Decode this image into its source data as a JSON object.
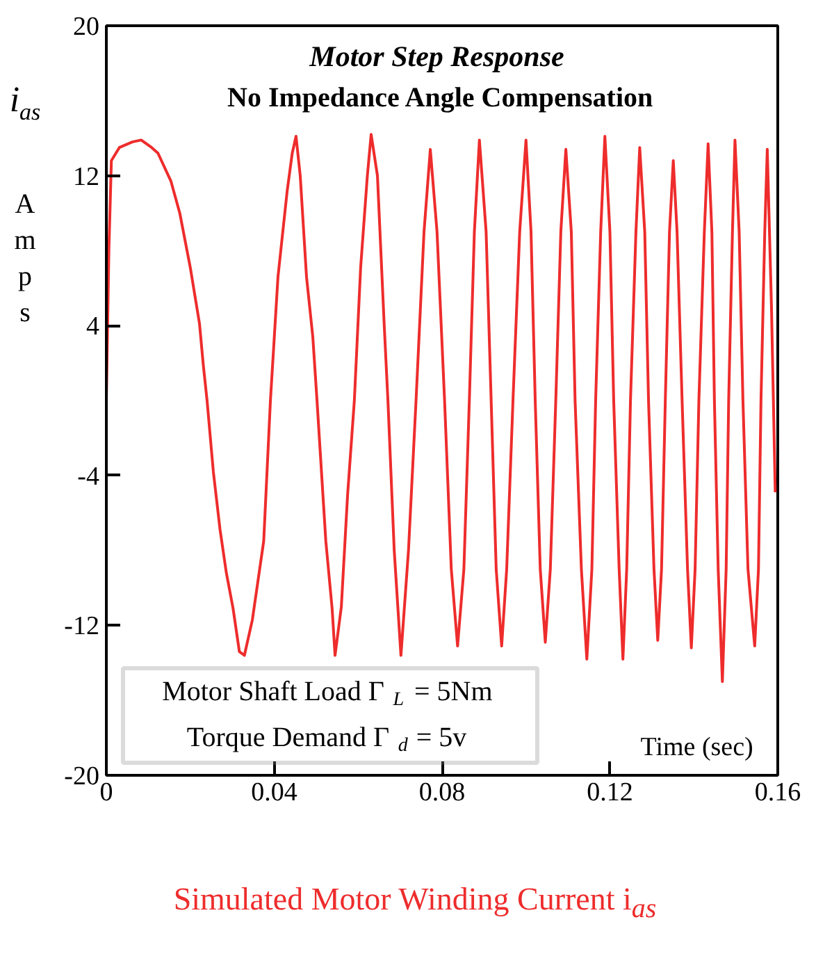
{
  "chart_data": {
    "type": "line",
    "title": "Motor Step Response",
    "subtitle": "No Impedance Angle Compensation",
    "xlabel": "Time (sec)",
    "ylabel": "i$_{as}$ Amps",
    "annotations": [
      "Motor Shaft Load Γ$_{L}$ = 5Nm",
      "Torque Demand Γ$_{d}$ = 5v",
      "Simulated Motor Winding Current i$_{as}$"
    ],
    "xlim": [
      0,
      0.16
    ],
    "xticks": [
      0,
      0.04,
      0.08,
      0.12,
      0.16
    ],
    "ylim": [
      -20,
      20
    ],
    "yticks": [
      -20,
      -12,
      -4,
      4,
      12,
      20
    ],
    "grid": false,
    "series": [
      {
        "color": "#ee2c2c",
        "x": [
          0,
          0.0006,
          0.0012,
          0.0031,
          0.0062,
          0.0083,
          0.0108,
          0.0123,
          0.0154,
          0.0175,
          0.02,
          0.0222,
          0.0231,
          0.024,
          0.0255,
          0.0271,
          0.0286,
          0.0302,
          0.0317,
          0.0329,
          0.0348,
          0.0375,
          0.0391,
          0.0409,
          0.0431,
          0.0443,
          0.0452,
          0.0462,
          0.0477,
          0.0492,
          0.0502,
          0.0523,
          0.0538,
          0.0545,
          0.056,
          0.0575,
          0.0591,
          0.0606,
          0.0622,
          0.0631,
          0.0646,
          0.0662,
          0.0671,
          0.0686,
          0.0702,
          0.072,
          0.0738,
          0.0757,
          0.0772,
          0.0788,
          0.0806,
          0.0822,
          0.0837,
          0.0852,
          0.0865,
          0.0877,
          0.0889,
          0.0905,
          0.0917,
          0.0929,
          0.0942,
          0.0954,
          0.0969,
          0.0985,
          0.1,
          0.1012,
          0.1022,
          0.1034,
          0.1046,
          0.1058,
          0.1071,
          0.1083,
          0.1095,
          0.1108,
          0.1117,
          0.1132,
          0.1145,
          0.1157,
          0.1166,
          0.1178,
          0.1188,
          0.12,
          0.1209,
          0.1222,
          0.1231,
          0.124,
          0.1249,
          0.1262,
          0.1271,
          0.1283,
          0.1292,
          0.1305,
          0.1314,
          0.1323,
          0.1332,
          0.1342,
          0.1351,
          0.136,
          0.1372,
          0.1385,
          0.1394,
          0.1403,
          0.1412,
          0.1425,
          0.1434,
          0.1443,
          0.1449,
          0.1458,
          0.1468,
          0.1477,
          0.1483,
          0.1492,
          0.1498,
          0.1508,
          0.1517,
          0.1529,
          0.1545,
          0.1554,
          0.156,
          0.1569,
          0.1575,
          0.1585,
          0.1594
        ],
        "values": [
          0,
          8,
          12.8,
          13.5,
          13.8,
          13.9,
          13.5,
          13.2,
          11.7,
          10,
          7.1,
          4.1,
          1.9,
          0,
          -3.8,
          -6.9,
          -9.2,
          -11.1,
          -13.4,
          -13.6,
          -11.7,
          -7.5,
          0,
          6.6,
          11.2,
          13.2,
          14.1,
          12,
          6.6,
          3.4,
          0,
          -7.5,
          -11.1,
          -13.6,
          -11,
          -5,
          0,
          7.1,
          12,
          14.2,
          12,
          4.1,
          0,
          -8,
          -13.6,
          -8,
          0,
          9,
          13.4,
          9,
          0,
          -9,
          -13.1,
          -9,
          0,
          9,
          13.9,
          9,
          0,
          -9,
          -13.1,
          -9,
          0,
          9,
          13.9,
          9,
          0,
          -9,
          -12.9,
          -9,
          0,
          9,
          13.4,
          9,
          0,
          -9,
          -13.8,
          -9,
          0,
          9,
          14.1,
          9,
          0,
          -9,
          -13.8,
          -9,
          0,
          9,
          13.5,
          9,
          0,
          -9,
          -12.8,
          -9,
          0,
          9,
          12.8,
          9,
          0,
          -9,
          -13.2,
          -9,
          0,
          9,
          13.7,
          9,
          0,
          -9,
          -15,
          -9,
          0,
          9,
          13.9,
          9,
          0,
          -9,
          -13.1,
          -9,
          0,
          9,
          13.4,
          5,
          -4.9
        ]
      }
    ]
  }
}
